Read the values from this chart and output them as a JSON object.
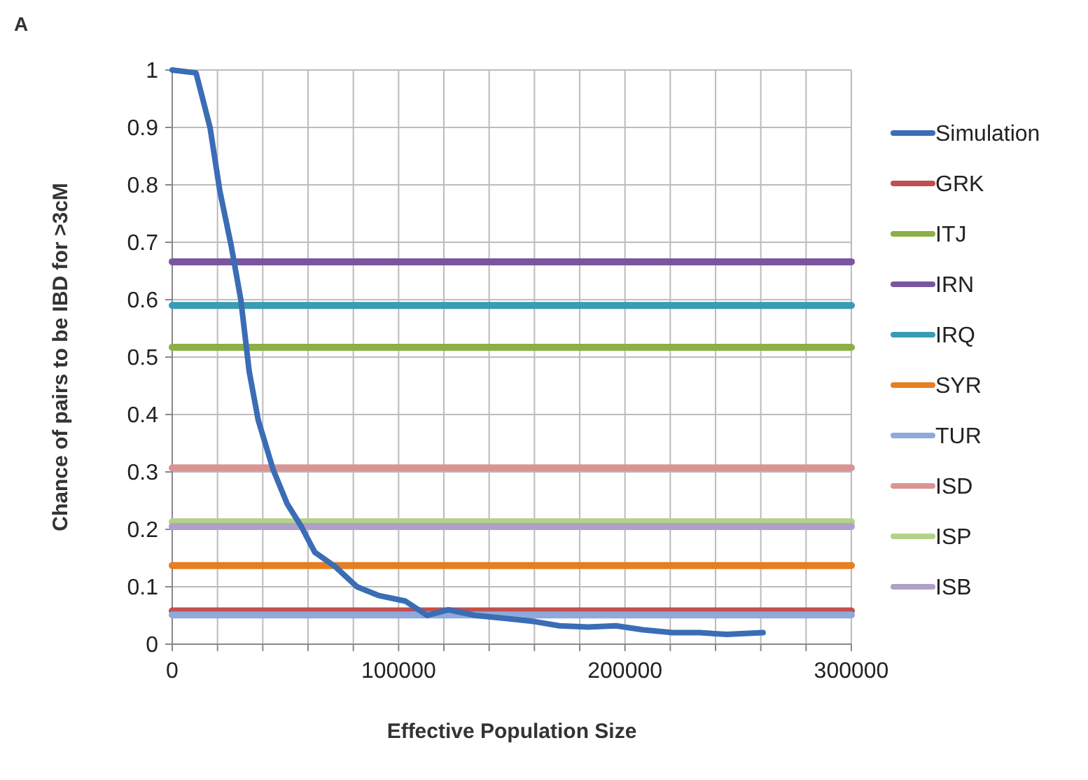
{
  "chart_data": {
    "type": "line",
    "title": "A",
    "xlabel": "Effective Population Size",
    "ylabel": "Chance of pairs to be IBD for >3cM",
    "xlim": [
      0,
      300000
    ],
    "ylim": [
      0,
      1
    ],
    "xticks": [
      0,
      {
        "value": 20000,
        "label": null
      },
      {
        "value": 40000,
        "label": null
      },
      {
        "value": 60000,
        "label": null
      },
      {
        "value": 80000,
        "label": null
      },
      100000,
      {
        "value": 120000,
        "label": null
      },
      {
        "value": 140000,
        "label": null
      },
      {
        "value": 160000,
        "label": null
      },
      {
        "value": 180000,
        "label": null
      },
      200000,
      {
        "value": 220000,
        "label": null
      },
      {
        "value": 240000,
        "label": null
      },
      {
        "value": 260000,
        "label": null
      },
      {
        "value": 280000,
        "label": null
      },
      300000
    ],
    "yticks": [
      0,
      0.1,
      0.2,
      0.3,
      0.4,
      0.5,
      0.6,
      0.7,
      0.8,
      0.9,
      1
    ],
    "grid": true,
    "legend": "right",
    "series": [
      {
        "name": "Simulation",
        "color": "#3a6db5",
        "x": [
          0,
          10500,
          16700,
          21000,
          26000,
          30300,
          34000,
          38000,
          44500,
          50700,
          57000,
          63000,
          72000,
          81600,
          91000,
          103000,
          112600,
          122000,
          134000,
          146600,
          159000,
          171000,
          183700,
          196000,
          208000,
          221000,
          233000,
          245000,
          261000
        ],
        "values": [
          1,
          0.995,
          0.9,
          0.79,
          0.695,
          0.6,
          0.475,
          0.39,
          0.305,
          0.245,
          0.205,
          0.16,
          0.135,
          0.1,
          0.085,
          0.075,
          0.05,
          0.06,
          0.05,
          0.045,
          0.04,
          0.032,
          0.03,
          0.032,
          0.025,
          0.02,
          0.02,
          0.017,
          0.02
        ]
      },
      {
        "name": "GRK",
        "color": "#c0504d",
        "x": [
          0,
          300000
        ],
        "values": [
          0.058,
          0.058
        ]
      },
      {
        "name": "ITJ",
        "color": "#8bb043",
        "x": [
          0,
          300000
        ],
        "values": [
          0.517,
          0.517
        ]
      },
      {
        "name": "IRN",
        "color": "#7a55a0",
        "x": [
          0,
          300000
        ],
        "values": [
          0.666,
          0.666
        ]
      },
      {
        "name": "IRQ",
        "color": "#3a9bb5",
        "x": [
          0,
          300000
        ],
        "values": [
          0.59,
          0.59
        ]
      },
      {
        "name": "SYR",
        "color": "#e67e22",
        "x": [
          0,
          300000
        ],
        "values": [
          0.137,
          0.137
        ]
      },
      {
        "name": "TUR",
        "color": "#8fa9dc",
        "x": [
          0,
          300000
        ],
        "values": [
          0.051,
          0.051
        ]
      },
      {
        "name": "ISD",
        "color": "#d99594",
        "x": [
          0,
          300000
        ],
        "values": [
          0.307,
          0.307
        ]
      },
      {
        "name": "ISP",
        "color": "#b3d18a",
        "x": [
          0,
          300000
        ],
        "values": [
          0.213,
          0.213
        ]
      },
      {
        "name": "ISB",
        "color": "#b0a0c8",
        "x": [
          0,
          300000
        ],
        "values": [
          0.205,
          0.205
        ]
      }
    ]
  }
}
